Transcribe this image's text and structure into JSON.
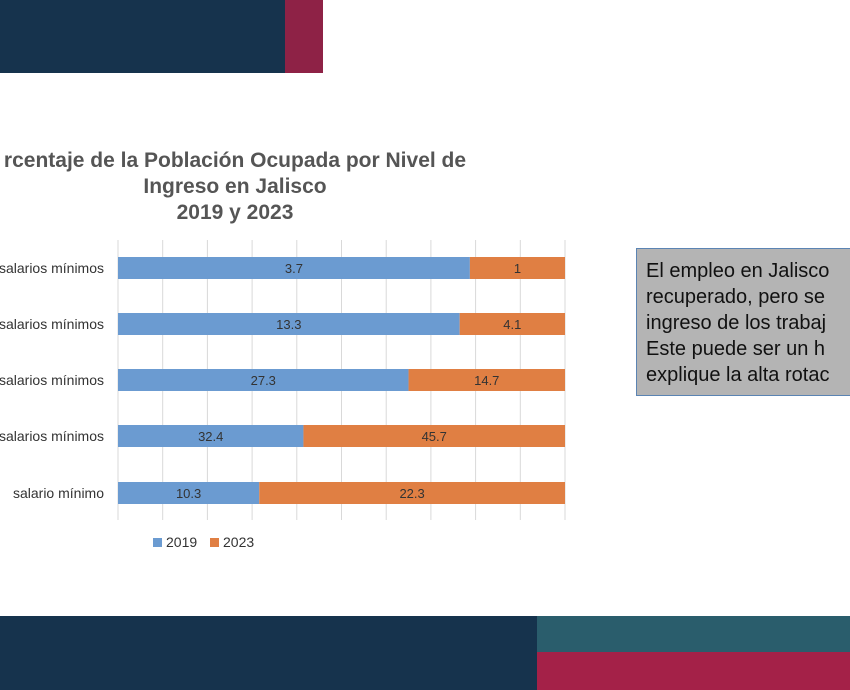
{
  "colors": {
    "navy": "#16334d",
    "maroon": "#8e2246",
    "teal": "#2a5d6c",
    "series_2019": "#6b9bd1",
    "series_2023": "#e07f43"
  },
  "chart_data": {
    "type": "bar",
    "orientation": "horizontal",
    "stacked": true,
    "title": "rcentaje de la Población Ocupada por Nivel de\nIngreso en Jalisco\n2019 y 2023",
    "categories": [
      "salarios mínimos",
      "salarios mínimos",
      "salarios mínimos",
      "salarios mínimos",
      "salario mínimo"
    ],
    "series": [
      {
        "name": "2019",
        "values": [
          3.7,
          13.3,
          27.3,
          32.4,
          10.3
        ]
      },
      {
        "name": "2023",
        "values": [
          1,
          4.1,
          14.7,
          45.7,
          22.3
        ]
      }
    ],
    "grid": true,
    "legend": "bottom"
  },
  "note": {
    "text": "El empleo en Jalisco\nrecuperado, pero se\ningreso de los trabaj\nEste puede ser un h\nexplique la alta rotac"
  }
}
